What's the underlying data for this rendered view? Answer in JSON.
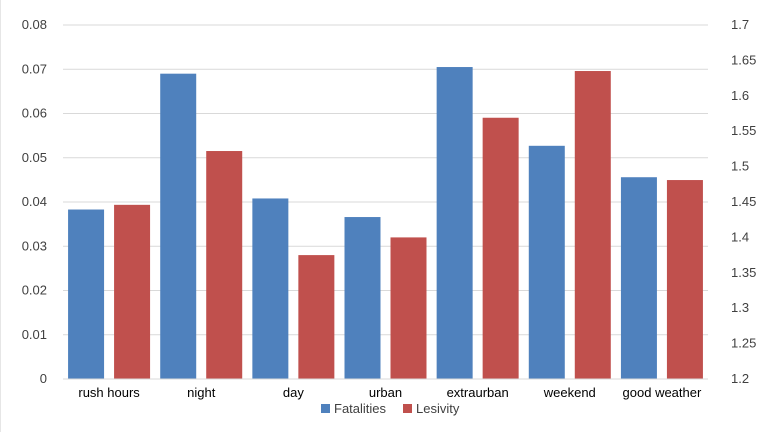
{
  "chart_data": {
    "type": "bar",
    "title": "",
    "xlabel": "",
    "ylabel": "",
    "categories": [
      "rush hours",
      "night",
      "day",
      "urban",
      "extraurban",
      "weekend",
      "good weather"
    ],
    "series": [
      {
        "name": "Fatalities",
        "axis": "left",
        "color": "#4F81BD",
        "values": [
          0.0383,
          0.069,
          0.0408,
          0.0366,
          0.0705,
          0.0527,
          0.0456
        ]
      },
      {
        "name": "Lesivity",
        "axis": "right",
        "color": "#C0504D",
        "values": [
          1.446,
          1.522,
          1.375,
          1.4,
          1.569,
          1.635,
          1.481
        ]
      }
    ],
    "y_left": {
      "ylim": [
        0,
        0.08
      ],
      "ticks": [
        0,
        0.01,
        0.02,
        0.03,
        0.04,
        0.05,
        0.06,
        0.07,
        0.08
      ],
      "tick_labels": [
        "0",
        "0.01",
        "0.02",
        "0.03",
        "0.04",
        "0.05",
        "0.06",
        "0.07",
        "0.08"
      ]
    },
    "y_right": {
      "ylim": [
        1.2,
        1.7
      ],
      "ticks": [
        1.2,
        1.25,
        1.3,
        1.35,
        1.4,
        1.45,
        1.5,
        1.55,
        1.6,
        1.65,
        1.7
      ],
      "tick_labels": [
        "1.2",
        "1.25",
        "1.3",
        "1.35",
        "1.4",
        "1.45",
        "1.5",
        "1.55",
        "1.6",
        "1.65",
        "1.7"
      ]
    },
    "grid": true,
    "legend": "bottom"
  }
}
